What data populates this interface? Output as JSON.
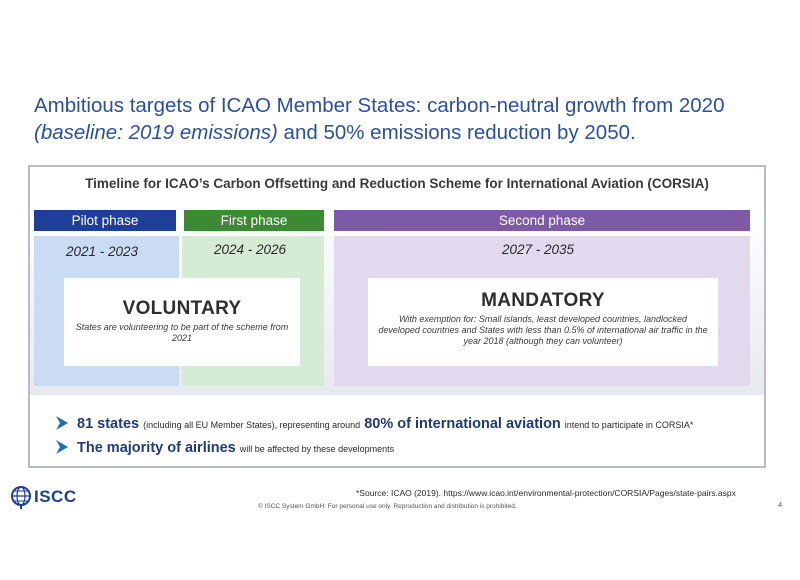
{
  "headline": {
    "line1": "Ambitious targets of ICAO Member States: carbon-neutral growth from 2020",
    "line2_italic": "(baseline: 2019 emissions)",
    "line2_rest": " and 50% emissions reduction by 2050."
  },
  "panel": {
    "title": "Timeline for ICAO’s Carbon Offsetting and Reduction Scheme for International Aviation (CORSIA)"
  },
  "phases": [
    {
      "label": "Pilot phase",
      "years": "2021 - 2023",
      "color": "#1d3f9a"
    },
    {
      "label": "First phase",
      "years": "2024 - 2026",
      "color": "#3d8a34"
    },
    {
      "label": "Second phase",
      "years": "2027 - 2035",
      "color": "#7c5aa6"
    }
  ],
  "voluntary": {
    "title": "VOLUNTARY",
    "desc": "States are volunteering to be part of the scheme from 2021"
  },
  "mandatory": {
    "title": "MANDATORY",
    "desc": "With exemption for: Small islands, least developed countries, landlocked developed countries and States with less than 0.5% of international air traffic in the year 2018 (although they can volunteer)"
  },
  "bullets": [
    {
      "strong1": "81 states",
      "small1": "(including all EU Member States), representing around",
      "strong2": "80% of international aviation",
      "small2": "intend to participate in CORSIA*"
    },
    {
      "strong1": "The majority of airlines",
      "small1": "will be affected by these developments"
    }
  ],
  "logo": {
    "text": "ISCC",
    "icon": "globe-icon"
  },
  "footer": {
    "source": "*Source: ICAO (2019). https://www.icao.int/environmental-protection/CORSIA/Pages/state-pairs.aspx",
    "copyright": "© ISCC System GmbH: For personal use only. Reproduction and distribution is prohibited.",
    "page": "4"
  },
  "colors": {
    "headline": "#2a4fa3",
    "bullet_text": "#1f3a78",
    "arrow": "#1d6fb8"
  }
}
